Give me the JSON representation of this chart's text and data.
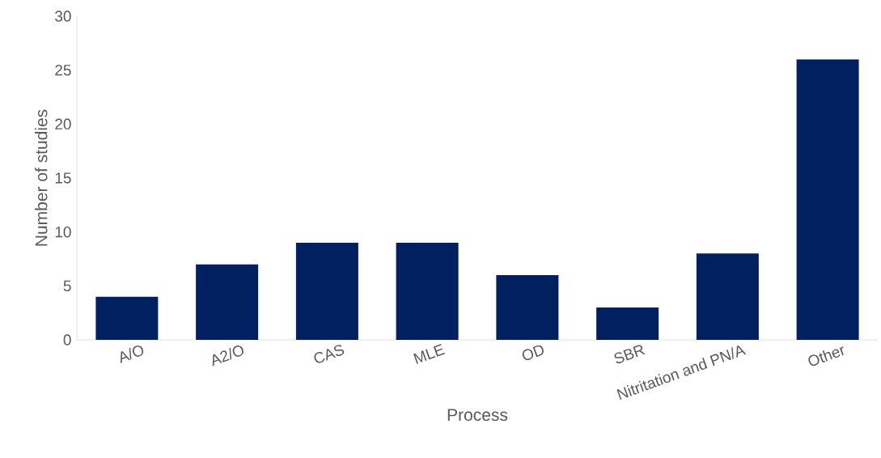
{
  "chart_data": {
    "type": "bar",
    "xlabel": "Process",
    "ylabel": "Number of studies",
    "categories": [
      "A/O",
      "A2/O",
      "CAS",
      "MLE",
      "OD",
      "SBR",
      "Nitritation and PN/A",
      "Other"
    ],
    "values": [
      4,
      7,
      9,
      9,
      6,
      3,
      8,
      26
    ],
    "color": "#002060",
    "ylim": [
      0,
      30
    ],
    "yticks": [
      0,
      5,
      10,
      15,
      20,
      25,
      30
    ]
  }
}
